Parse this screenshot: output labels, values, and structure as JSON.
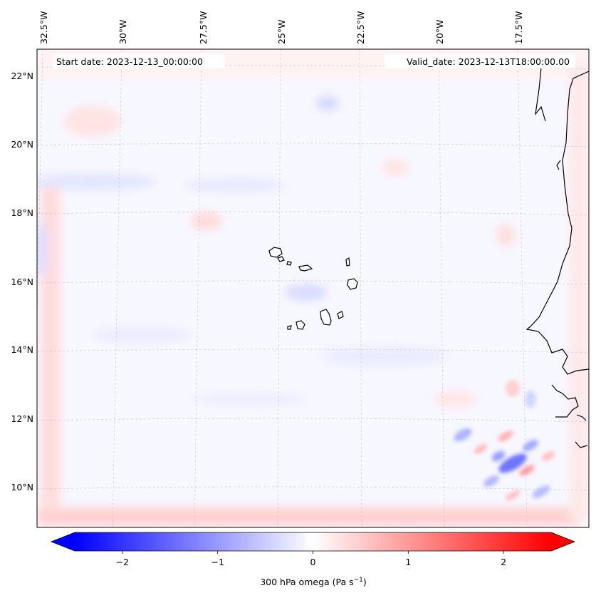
{
  "map": {
    "header": {
      "start_date": "Start date: 2023-12-13_00:00:00",
      "valid_date": "Valid_date: 2023-12-13T18:00:00.00"
    },
    "lon_labels": [
      "32.5°W",
      "30°W",
      "27.5°W",
      "25°W",
      "22.5°W",
      "20°W",
      "17.5°W"
    ],
    "lat_labels": [
      "22°N",
      "20°N",
      "18°N",
      "16°N",
      "14°N",
      "12°N",
      "10°N"
    ],
    "colors": {
      "negative_max": "#0000ff",
      "zero": "#ffffff",
      "positive_max": "#ff0000",
      "coastline": "#000000",
      "gridline": "#b0b0b0"
    }
  },
  "colorbar": {
    "tick_labels": [
      "−2",
      "−1",
      "0",
      "1",
      "2"
    ],
    "tick_values": [
      -2,
      -1,
      0,
      1,
      2
    ],
    "range": [
      -2.5,
      2.5
    ],
    "extend": "both",
    "label": "300 hPa omega (Pa s",
    "label_sup": "−1",
    "label_close": ")"
  }
}
